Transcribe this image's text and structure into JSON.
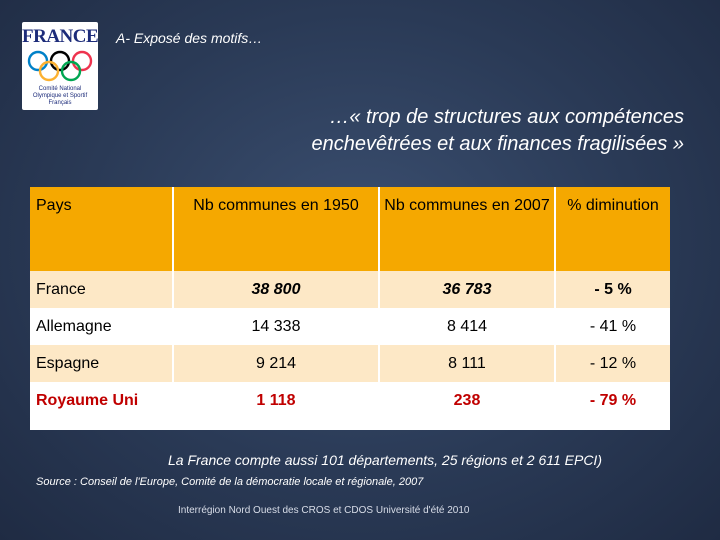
{
  "logo": {
    "word": "FRANCE",
    "subtext": "Comité National Olympique et Sportif Français",
    "ring_colors": [
      "#0081c8",
      "#000000",
      "#ee334e",
      "#fcb131",
      "#00a651"
    ]
  },
  "header": {
    "title": "A- Exposé des motifs…"
  },
  "subtitle": {
    "line1": "…« trop de structures aux compétences",
    "line2": "enchevêtrées et aux finances fragilisées »"
  },
  "table": {
    "headers": [
      "Pays",
      "Nb communes en 1950",
      "Nb communes en 2007",
      "% diminution"
    ],
    "rows": [
      {
        "country": "France",
        "c1950": "38 800",
        "c2007": "36 783",
        "pct": "- 5 %"
      },
      {
        "country": "Allemagne",
        "c1950": "14 338",
        "c2007": "8 414",
        "pct": "- 41 %"
      },
      {
        "country": "Espagne",
        "c1950": "9 214",
        "c2007": "8 111",
        "pct": "- 12 %"
      },
      {
        "country": "Royaume Uni",
        "c1950": "1 118",
        "c2007": "238",
        "pct": "- 79 %"
      }
    ]
  },
  "note": "La France compte aussi 101 départements, 25 régions et 2 611 EPCI)",
  "source": "Source : Conseil de l'Europe, Comité de la démocratie locale et régionale, 2007",
  "footer": "Interrégion Nord Ouest des CROS et CDOS Université d'été  2010",
  "colors": {
    "header_fill": "#f5a800",
    "highlight_red": "#c00000",
    "row_alt": "#fde8c6"
  }
}
